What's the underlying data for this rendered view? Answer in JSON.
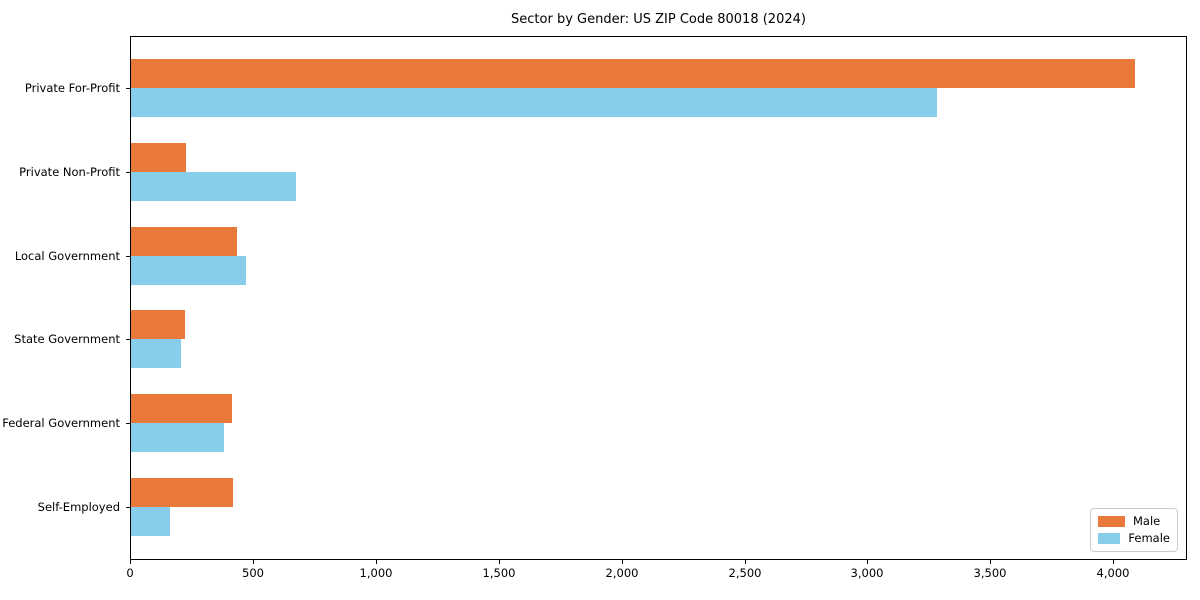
{
  "chart_data": {
    "type": "bar",
    "orientation": "horizontal",
    "title": "Sector by Gender: US ZIP Code 80018 (2024)",
    "categories": [
      "Private For-Profit",
      "Private Non-Profit",
      "Local Government",
      "State Government",
      "Federal Government",
      "Self-Employed"
    ],
    "series": [
      {
        "name": "Male",
        "color": "#e8793a",
        "values": [
          4090,
          227,
          434,
          223,
          416,
          420
        ]
      },
      {
        "name": "Female",
        "color": "#87ceeb",
        "values": [
          3281,
          675,
          472,
          208,
          381,
          163
        ]
      }
    ],
    "xlabel": "",
    "ylabel": "",
    "xlim": [
      0,
      4300
    ],
    "x_ticks": [
      0,
      500,
      1000,
      1500,
      2000,
      2500,
      3000,
      3500,
      4000
    ],
    "x_tick_labels": [
      "0",
      "500",
      "1,000",
      "1,500",
      "2,000",
      "2,500",
      "3,000",
      "3,500",
      "4,000"
    ],
    "grid": false,
    "legend_position": "lower right",
    "background_color": "#ffffff",
    "axis_color": "#000000",
    "legend_border_color": "#cccccc"
  }
}
